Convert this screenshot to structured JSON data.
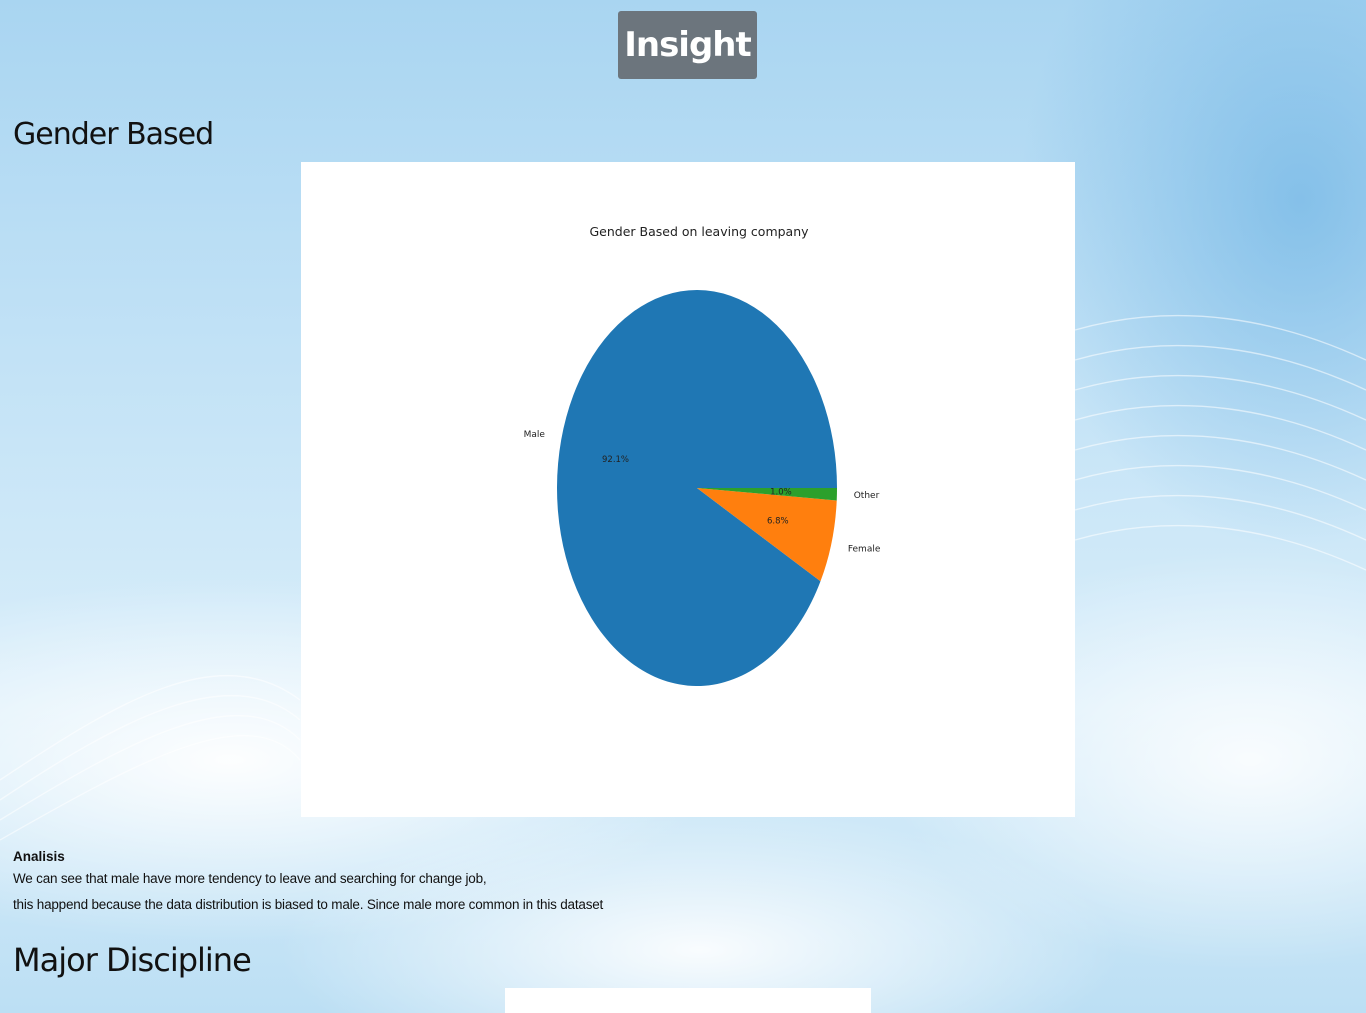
{
  "page": {
    "title": "Insight",
    "sections": [
      {
        "heading": "Gender Based"
      },
      {
        "heading": "Major Discipline"
      }
    ],
    "analysis": {
      "title": "Analisis",
      "lines": [
        "We can see that male have more tendency to leave and searching for change job,",
        "this happend because the data distribution is biased to male. Since male more common in this dataset"
      ]
    }
  },
  "chart_data": {
    "type": "pie",
    "title": "Gender Based on leaving company",
    "slices": [
      {
        "label": "Male",
        "value": 92.1,
        "pct_label": "92.1%",
        "color": "#1f77b4"
      },
      {
        "label": "Female",
        "value": 6.8,
        "pct_label": "6.8%",
        "color": "#ff7f0e"
      },
      {
        "label": "Other",
        "value": 1.0,
        "pct_label": "1.0%",
        "color": "#2ca02c"
      }
    ],
    "legend": "none"
  }
}
